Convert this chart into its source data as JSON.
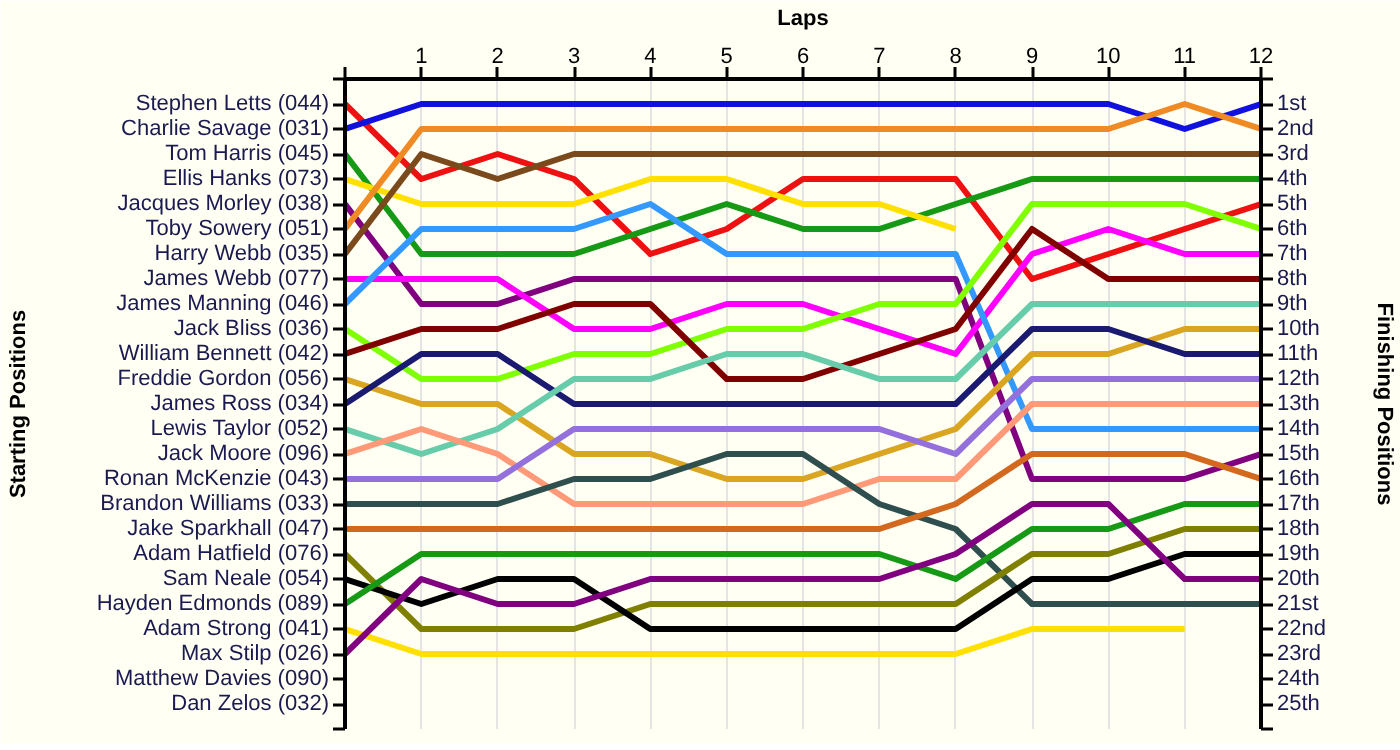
{
  "chart_data": {
    "type": "line",
    "xlabel": "Laps",
    "ylabel": "Finishing Positions",
    "x": [
      0,
      1,
      2,
      3,
      4,
      5,
      6,
      7,
      8,
      9,
      10,
      11,
      12
    ],
    "xlim": [
      0,
      12
    ],
    "xticks": [
      {
        "value": 0,
        "label": null
      },
      1,
      2,
      3,
      4,
      5,
      6,
      7,
      8,
      9,
      10,
      11,
      12
    ],
    "ylim": [
      26,
      0
    ],
    "yticks": [
      {
        "value": 0,
        "label": null
      },
      {
        "value": 1,
        "label": "1st"
      },
      {
        "value": 2,
        "label": "2nd"
      },
      {
        "value": 3,
        "label": "3rd"
      },
      {
        "value": 4,
        "label": "4th"
      },
      {
        "value": 5,
        "label": "5th"
      },
      {
        "value": 6,
        "label": "6th"
      },
      {
        "value": 7,
        "label": "7th"
      },
      {
        "value": 8,
        "label": "8th"
      },
      {
        "value": 9,
        "label": "9th"
      },
      {
        "value": 10,
        "label": "10th"
      },
      {
        "value": 11,
        "label": "11th"
      },
      {
        "value": 12,
        "label": "12th"
      },
      {
        "value": 13,
        "label": "13th"
      },
      {
        "value": 14,
        "label": "14th"
      },
      {
        "value": 15,
        "label": "15th"
      },
      {
        "value": 16,
        "label": "16th"
      },
      {
        "value": 17,
        "label": "17th"
      },
      {
        "value": 18,
        "label": "18th"
      },
      {
        "value": 19,
        "label": "19th"
      },
      {
        "value": 20,
        "label": "20th"
      },
      {
        "value": 21,
        "label": "21st"
      },
      {
        "value": 22,
        "label": "22nd"
      },
      {
        "value": 23,
        "label": "23rd"
      },
      {
        "value": 24,
        "label": "24th"
      },
      {
        "value": 25,
        "label": "25th"
      },
      {
        "value": 26,
        "label": null
      }
    ],
    "annotations": [
      "Stephen Letts (044)",
      "Charlie Savage (031)",
      "Tom Harris (045)",
      "Ellis Hanks (073)",
      "Jacques Morley (038)",
      "Toby Sowery (051)",
      "Harry Webb (035)",
      "James Webb (077)",
      "James Manning (046)",
      "Jack Bliss (036)",
      "William Bennett (042)",
      "Freddie Gordon (056)",
      "James Ross (034)",
      "Lewis Taylor (052)",
      "Jack Moore (096)",
      "Ronan McKenzie (043)",
      "Brandon Williams (033)",
      "Jake Sparkhall (047)",
      "Adam Hatfield (076)",
      "Sam Neale (054)",
      "Hayden Edmonds (089)",
      "Adam Strong (041)",
      "Max Stilp (026)",
      "Matthew Davies (090)",
      "Dan Zelos (032)",
      "Starting Positions"
    ],
    "grid": "x",
    "series": [
      {
        "color": "#ee1111",
        "values": [
          1,
          4,
          3,
          4,
          7,
          6,
          4,
          4,
          4,
          8,
          7,
          6,
          5
        ]
      },
      {
        "color": "#1111dd",
        "values": [
          2,
          1,
          1,
          1,
          1,
          1,
          1,
          1,
          1,
          1,
          1,
          2,
          1
        ]
      },
      {
        "color": "#169a16",
        "values": [
          3,
          7,
          7,
          7,
          6,
          5,
          6,
          6,
          5,
          4,
          4,
          4,
          4
        ]
      },
      {
        "color": "#ffe000",
        "values": [
          4,
          5,
          5,
          5,
          4,
          4,
          5,
          5,
          6,
          null,
          null,
          null,
          null
        ]
      },
      {
        "color": "#800080",
        "values": [
          5,
          9,
          9,
          8,
          8,
          8,
          8,
          8,
          8,
          16,
          16,
          16,
          15
        ]
      },
      {
        "color": "#f08a24",
        "values": [
          6,
          2,
          2,
          2,
          2,
          2,
          2,
          2,
          2,
          2,
          2,
          1,
          2
        ]
      },
      {
        "color": "#7b4a1c",
        "values": [
          7,
          3,
          4,
          3,
          3,
          3,
          3,
          3,
          3,
          3,
          3,
          3,
          3
        ]
      },
      {
        "color": "#ff00ff",
        "values": [
          8,
          8,
          8,
          10,
          10,
          9,
          9,
          10,
          11,
          7,
          6,
          7,
          7
        ]
      },
      {
        "color": "#3399ff",
        "values": [
          9,
          6,
          6,
          6,
          5,
          7,
          7,
          7,
          7,
          14,
          14,
          14,
          14
        ]
      },
      {
        "color": "#80ff00",
        "values": [
          10,
          12,
          12,
          11,
          11,
          10,
          10,
          9,
          9,
          5,
          5,
          5,
          6
        ]
      },
      {
        "color": "#800000",
        "values": [
          11,
          10,
          10,
          9,
          9,
          12,
          12,
          11,
          10,
          6,
          8,
          8,
          8
        ]
      },
      {
        "color": "#daa520",
        "values": [
          12,
          13,
          13,
          15,
          15,
          16,
          16,
          15,
          14,
          11,
          11,
          10,
          10
        ]
      },
      {
        "color": "#1a1a70",
        "values": [
          13,
          11,
          11,
          13,
          13,
          13,
          13,
          13,
          13,
          10,
          10,
          11,
          11
        ]
      },
      {
        "color": "#66ccaa",
        "values": [
          14,
          15,
          14,
          12,
          12,
          11,
          11,
          12,
          12,
          9,
          9,
          9,
          9
        ]
      },
      {
        "color": "#ff9977",
        "values": [
          15,
          14,
          15,
          17,
          17,
          17,
          17,
          16,
          16,
          13,
          13,
          13,
          13
        ]
      },
      {
        "color": "#9370db",
        "values": [
          16,
          16,
          16,
          14,
          14,
          14,
          14,
          14,
          15,
          12,
          12,
          12,
          12
        ]
      },
      {
        "color": "#2f4f4f",
        "values": [
          17,
          17,
          17,
          16,
          16,
          15,
          15,
          17,
          18,
          21,
          21,
          21,
          21
        ]
      },
      {
        "color": "#d2691e",
        "values": [
          18,
          18,
          18,
          18,
          18,
          18,
          18,
          18,
          17,
          15,
          15,
          15,
          16
        ]
      },
      {
        "color": "#808000",
        "values": [
          19,
          22,
          22,
          22,
          21,
          21,
          21,
          21,
          21,
          19,
          19,
          18,
          18
        ]
      },
      {
        "color": "#000000",
        "values": [
          20,
          21,
          20,
          20,
          22,
          22,
          22,
          22,
          22,
          20,
          20,
          19,
          19
        ]
      },
      {
        "color": "#169a16",
        "values": [
          21,
          19,
          19,
          19,
          19,
          19,
          19,
          19,
          20,
          18,
          18,
          17,
          17
        ]
      },
      {
        "color": "#ffe000",
        "values": [
          22,
          23,
          23,
          23,
          23,
          23,
          23,
          23,
          23,
          22,
          22,
          22,
          null
        ]
      },
      {
        "color": "#800080",
        "values": [
          23,
          20,
          21,
          21,
          20,
          20,
          20,
          20,
          19,
          17,
          17,
          20,
          20
        ]
      }
    ]
  }
}
